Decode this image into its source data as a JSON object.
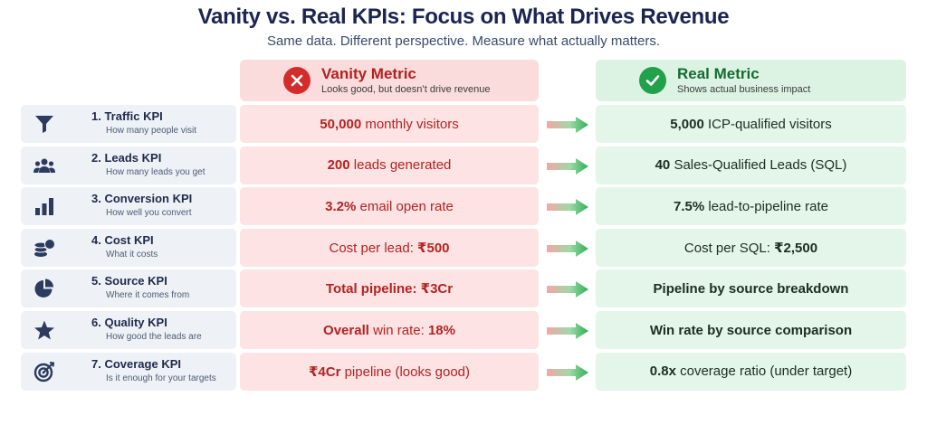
{
  "header": {
    "title": "Vanity vs. Real KPIs: Focus on What Drives Revenue",
    "subtitle": "Same data. Different perspective. Measure what actually matters."
  },
  "columns": {
    "vanity": {
      "title": "Vanity Metric",
      "subtitle": "Looks good, but doesn’t drive revenue",
      "icon": "x-circle-icon",
      "color": "#d52b2b"
    },
    "real": {
      "title": "Real Metric",
      "subtitle": "Shows actual business impact",
      "icon": "check-circle-icon",
      "color": "#21a24a"
    }
  },
  "rows": [
    {
      "name": "1.  Traffic KPI",
      "desc": "How many people visit",
      "icon": "funnel-icon",
      "vanity": [
        {
          "t": "50,000",
          "b": true
        },
        {
          "t": " monthly visitors",
          "b": false
        }
      ],
      "real": [
        {
          "t": "5,000",
          "b": true
        },
        {
          "t": " ICP-qualified visitors",
          "b": false
        }
      ]
    },
    {
      "name": "2.  Leads KPI",
      "desc": "How many leads you get",
      "icon": "people-icon",
      "vanity": [
        {
          "t": "200",
          "b": true
        },
        {
          "t": " leads generated",
          "b": false
        }
      ],
      "real": [
        {
          "t": "40",
          "b": true
        },
        {
          "t": " Sales-Qualified Leads (SQL)",
          "b": false
        }
      ]
    },
    {
      "name": "3.  Conversion KPI",
      "desc": "How well you convert",
      "icon": "bar-chart-icon",
      "vanity": [
        {
          "t": "3.2%",
          "b": true
        },
        {
          "t": " email open rate",
          "b": false
        }
      ],
      "real": [
        {
          "t": "7.5%",
          "b": true
        },
        {
          "t": " lead-to-pipeline rate",
          "b": false
        }
      ]
    },
    {
      "name": "4.  Cost KPI",
      "desc": "What it costs",
      "icon": "coins-icon",
      "vanity": [
        {
          "t": "Cost per lead: ",
          "b": false
        },
        {
          "t": "₹500",
          "b": true
        }
      ],
      "real": [
        {
          "t": "Cost per SQL: ",
          "b": false
        },
        {
          "t": "₹2,500",
          "b": true
        }
      ]
    },
    {
      "name": "5.  Source KPI",
      "desc": "Where it comes from",
      "icon": "pie-chart-icon",
      "vanity": [
        {
          "t": "Total pipeline: ₹3Cr",
          "b": true
        }
      ],
      "real": [
        {
          "t": "Pipeline by source breakdown",
          "b": true
        }
      ]
    },
    {
      "name": "6.  Quality KPI",
      "desc": "How good the leads are",
      "icon": "star-icon",
      "vanity": [
        {
          "t": "Overall",
          "b": true
        },
        {
          "t": " win rate: ",
          "b": false
        },
        {
          "t": "18%",
          "b": true
        }
      ],
      "real": [
        {
          "t": "Win rate by source comparison",
          "b": true
        }
      ]
    },
    {
      "name": "7.  Coverage KPI",
      "desc": "Is it enough for your targets",
      "icon": "target-icon",
      "vanity": [
        {
          "t": "₹4Cr",
          "b": true
        },
        {
          "t": " pipeline (looks good)",
          "b": false
        }
      ],
      "real": [
        {
          "t": "0.8x",
          "b": true
        },
        {
          "t": " coverage ratio (under target)",
          "b": false
        }
      ]
    }
  ]
}
